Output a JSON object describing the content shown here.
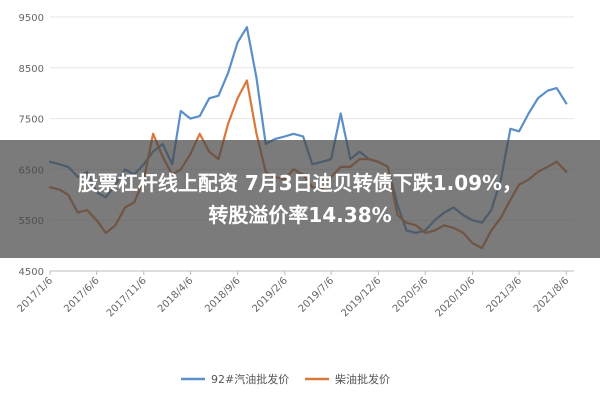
{
  "chart_data": {
    "type": "line",
    "ylim": [
      4500,
      9500
    ],
    "yticks": [
      "9500",
      "8500",
      "7500",
      "6500",
      "5500",
      "4500"
    ],
    "xticks": [
      "2017/1/6",
      "2017/6/6",
      "2017/11/6",
      "2018/4/6",
      "2018/9/6",
      "2019/2/6",
      "2019/7/6",
      "2019/12/6",
      "2020/5/6",
      "2020/10/6",
      "2021/3/6",
      "2021/8/6"
    ],
    "series": [
      {
        "name": "92#汽油批发价",
        "color": "#5b8fc9",
        "points": [
          [
            "2017/1/6",
            6650
          ],
          [
            "2017/2/6",
            6600
          ],
          [
            "2017/3/6",
            6550
          ],
          [
            "2017/4/6",
            6350
          ],
          [
            "2017/5/6",
            6450
          ],
          [
            "2017/6/6",
            6050
          ],
          [
            "2017/7/6",
            5950
          ],
          [
            "2017/8/6",
            6200
          ],
          [
            "2017/9/6",
            6500
          ],
          [
            "2017/10/6",
            6400
          ],
          [
            "2017/11/6",
            6600
          ],
          [
            "2017/12/6",
            6850
          ],
          [
            "2018/1/6",
            7000
          ],
          [
            "2018/2/6",
            6600
          ],
          [
            "2018/3/6",
            7650
          ],
          [
            "2018/4/6",
            7500
          ],
          [
            "2018/5/6",
            7550
          ],
          [
            "2018/6/6",
            7900
          ],
          [
            "2018/7/6",
            7950
          ],
          [
            "2018/8/6",
            8400
          ],
          [
            "2018/9/6",
            9000
          ],
          [
            "2018/10/6",
            9300
          ],
          [
            "2018/11/6",
            8300
          ],
          [
            "2018/12/6",
            7000
          ],
          [
            "2019/1/6",
            7100
          ],
          [
            "2019/2/6",
            7150
          ],
          [
            "2019/3/6",
            7200
          ],
          [
            "2019/4/6",
            7150
          ],
          [
            "2019/5/6",
            6600
          ],
          [
            "2019/6/6",
            6650
          ],
          [
            "2019/7/6",
            6700
          ],
          [
            "2019/8/6",
            7600
          ],
          [
            "2019/9/6",
            6700
          ],
          [
            "2019/10/6",
            6850
          ],
          [
            "2019/11/6",
            6700
          ],
          [
            "2019/12/6",
            6650
          ],
          [
            "2020/1/6",
            6550
          ],
          [
            "2020/2/6",
            5800
          ],
          [
            "2020/3/6",
            5300
          ],
          [
            "2020/4/6",
            5250
          ],
          [
            "2020/5/6",
            5300
          ],
          [
            "2020/6/6",
            5500
          ],
          [
            "2020/7/6",
            5650
          ],
          [
            "2020/8/6",
            5750
          ],
          [
            "2020/9/6",
            5600
          ],
          [
            "2020/10/6",
            5500
          ],
          [
            "2020/11/6",
            5450
          ],
          [
            "2020/12/6",
            5700
          ],
          [
            "2021/1/6",
            6300
          ],
          [
            "2021/2/6",
            7300
          ],
          [
            "2021/3/6",
            7250
          ],
          [
            "2021/4/6",
            7600
          ],
          [
            "2021/5/6",
            7900
          ],
          [
            "2021/6/6",
            8050
          ],
          [
            "2021/7/6",
            8100
          ],
          [
            "2021/8/6",
            7800
          ]
        ]
      },
      {
        "name": "柴油批发价",
        "color": "#d9783b",
        "points": [
          [
            "2017/1/6",
            6150
          ],
          [
            "2017/2/6",
            6100
          ],
          [
            "2017/3/6",
            6000
          ],
          [
            "2017/4/6",
            5650
          ],
          [
            "2017/5/6",
            5700
          ],
          [
            "2017/6/6",
            5500
          ],
          [
            "2017/7/6",
            5250
          ],
          [
            "2017/8/6",
            5400
          ],
          [
            "2017/9/6",
            5750
          ],
          [
            "2017/10/6",
            5850
          ],
          [
            "2017/11/6",
            6300
          ],
          [
            "2017/12/6",
            7200
          ],
          [
            "2018/1/6",
            6750
          ],
          [
            "2018/2/6",
            6400
          ],
          [
            "2018/3/6",
            6500
          ],
          [
            "2018/4/6",
            6800
          ],
          [
            "2018/5/6",
            7200
          ],
          [
            "2018/6/6",
            6850
          ],
          [
            "2018/7/6",
            6700
          ],
          [
            "2018/8/6",
            7400
          ],
          [
            "2018/9/6",
            7900
          ],
          [
            "2018/10/6",
            8250
          ],
          [
            "2018/11/6",
            7200
          ],
          [
            "2018/12/6",
            6450
          ],
          [
            "2019/1/6",
            6350
          ],
          [
            "2019/2/6",
            6300
          ],
          [
            "2019/3/6",
            6500
          ],
          [
            "2019/4/6",
            6400
          ],
          [
            "2019/5/6",
            6150
          ],
          [
            "2019/6/6",
            6100
          ],
          [
            "2019/7/6",
            6350
          ],
          [
            "2019/8/6",
            6550
          ],
          [
            "2019/9/6",
            6550
          ],
          [
            "2019/10/6",
            6700
          ],
          [
            "2019/11/6",
            6700
          ],
          [
            "2019/12/6",
            6650
          ],
          [
            "2020/1/6",
            6550
          ],
          [
            "2020/2/6",
            5600
          ],
          [
            "2020/3/6",
            5450
          ],
          [
            "2020/4/6",
            5400
          ],
          [
            "2020/5/6",
            5250
          ],
          [
            "2020/6/6",
            5300
          ],
          [
            "2020/7/6",
            5400
          ],
          [
            "2020/8/6",
            5350
          ],
          [
            "2020/9/6",
            5250
          ],
          [
            "2020/10/6",
            5050
          ],
          [
            "2020/11/6",
            4950
          ],
          [
            "2020/12/6",
            5300
          ],
          [
            "2021/1/6",
            5550
          ],
          [
            "2021/2/6",
            5900
          ],
          [
            "2021/3/6",
            6200
          ],
          [
            "2021/4/6",
            6300
          ],
          [
            "2021/5/6",
            6450
          ],
          [
            "2021/6/6",
            6550
          ],
          [
            "2021/7/6",
            6650
          ],
          [
            "2021/8/6",
            6450
          ]
        ]
      }
    ],
    "grid": true,
    "legend_position": "bottom-center"
  },
  "headline": {
    "line1": "股票杠杆线上配资   7月3日迪贝转债下跌1.09%，",
    "line2": "转股溢价率14.38%"
  }
}
